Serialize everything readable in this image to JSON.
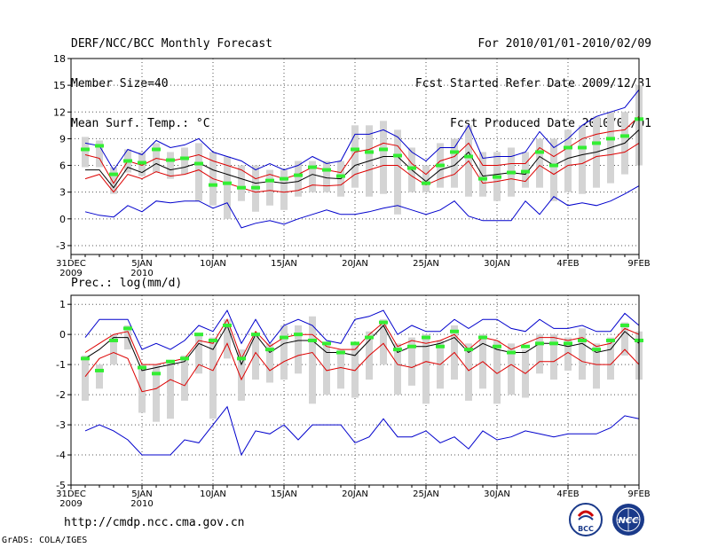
{
  "header": {
    "left": [
      "DERF/NCC/BCC Monthly Forecast",
      "Member Size=40",
      "Mean Surf. Temp.: °C"
    ],
    "right": [
      "For 2010/01/01-2010/02/09",
      "Fcst Started Refer Date 2009/12/31",
      "Fcst Produced Date 2010/01/01"
    ]
  },
  "footer": {
    "url": "http://cmdp.ncc.cma.gov.cn",
    "credit": "GrADS: COLA/IGES",
    "logo_left_text": "BCC",
    "logo_right_text": "NCC"
  },
  "colors": {
    "max": "#0000cc",
    "min": "#0000cc",
    "upper": "#dd0000",
    "lower": "#dd0000",
    "mean": "#000000",
    "box": "#d4d4d4",
    "obs": "#33ee33"
  },
  "chart_data": [
    {
      "type": "line",
      "title": "Mean Surf. Temp.: °C",
      "ylim": [
        -4,
        18
      ],
      "yticks": [
        -3,
        0,
        3,
        6,
        9,
        12,
        15,
        18
      ],
      "xlabels": [
        {
          "day": 0,
          "lines": [
            "31DEC",
            "2009"
          ]
        },
        {
          "day": 5,
          "lines": [
            "5JAN",
            "2010"
          ]
        },
        {
          "day": 10,
          "lines": [
            "10JAN"
          ]
        },
        {
          "day": 15,
          "lines": [
            "15JAN"
          ]
        },
        {
          "day": 20,
          "lines": [
            "20JAN"
          ]
        },
        {
          "day": 25,
          "lines": [
            "25JAN"
          ]
        },
        {
          "day": 30,
          "lines": [
            "30JAN"
          ]
        },
        {
          "day": 35,
          "lines": [
            "4FEB"
          ]
        },
        {
          "day": 40,
          "lines": [
            "9FEB"
          ]
        }
      ],
      "days": [
        1,
        2,
        3,
        4,
        5,
        6,
        7,
        8,
        9,
        10,
        11,
        12,
        13,
        14,
        15,
        16,
        17,
        18,
        19,
        20,
        21,
        22,
        23,
        24,
        25,
        26,
        27,
        28,
        29,
        30,
        31,
        32,
        33,
        34,
        35,
        36,
        37,
        38,
        39,
        40
      ],
      "series": [
        {
          "name": "max",
          "values": [
            8.5,
            8.2,
            5.5,
            7.8,
            7.2,
            8.8,
            8.0,
            8.3,
            9.0,
            7.5,
            7.0,
            6.5,
            5.5,
            6.2,
            5.5,
            6.0,
            7.0,
            6.2,
            6.5,
            9.5,
            9.5,
            10.0,
            9.2,
            7.5,
            6.5,
            8.0,
            8.0,
            10.5,
            6.8,
            7.0,
            7.0,
            7.5,
            9.8,
            8.0,
            9.0,
            10.5,
            11.5,
            12.0,
            12.5,
            14.5
          ]
        },
        {
          "name": "upper",
          "values": [
            7.2,
            6.8,
            4.0,
            6.5,
            6.0,
            6.8,
            6.5,
            6.8,
            7.2,
            6.5,
            6.0,
            5.5,
            4.5,
            5.0,
            4.5,
            5.0,
            5.8,
            5.5,
            5.2,
            7.5,
            7.8,
            8.5,
            8.2,
            6.2,
            5.0,
            6.5,
            7.0,
            8.5,
            6.0,
            6.0,
            6.2,
            6.2,
            8.0,
            7.0,
            8.0,
            9.0,
            9.5,
            9.8,
            10.0,
            11.5
          ]
        },
        {
          "name": "mean",
          "values": [
            5.5,
            5.5,
            3.5,
            5.8,
            5.2,
            6.2,
            5.5,
            5.8,
            6.3,
            5.5,
            5.0,
            4.5,
            4.0,
            4.2,
            4.0,
            4.2,
            5.0,
            4.6,
            4.5,
            6.0,
            6.5,
            7.0,
            7.0,
            5.5,
            4.2,
            5.5,
            6.0,
            7.5,
            4.8,
            5.0,
            5.2,
            5.0,
            7.0,
            6.0,
            6.8,
            7.2,
            7.5,
            8.0,
            8.5,
            10.0
          ]
        },
        {
          "name": "lower",
          "values": [
            4.5,
            5.0,
            3.0,
            5.0,
            4.5,
            5.3,
            4.8,
            5.0,
            5.5,
            4.5,
            4.0,
            3.5,
            3.0,
            3.2,
            3.0,
            3.2,
            3.8,
            3.7,
            3.8,
            5.0,
            5.5,
            6.0,
            6.0,
            4.8,
            3.8,
            4.5,
            5.0,
            6.5,
            4.0,
            4.2,
            4.5,
            4.2,
            6.0,
            5.0,
            6.0,
            6.2,
            7.0,
            7.2,
            7.5,
            8.5
          ]
        },
        {
          "name": "min",
          "values": [
            0.8,
            0.4,
            0.2,
            1.5,
            0.8,
            2.0,
            1.8,
            2.0,
            2.0,
            1.2,
            1.8,
            -1.0,
            -0.5,
            -0.2,
            -0.6,
            0.0,
            0.5,
            1.0,
            0.5,
            0.5,
            0.8,
            1.2,
            1.5,
            1.0,
            0.5,
            1.0,
            2.0,
            0.3,
            -0.2,
            -0.2,
            -0.2,
            2.0,
            0.5,
            2.5,
            1.5,
            1.8,
            1.5,
            2.0,
            2.8,
            3.7
          ]
        },
        {
          "name": "obs",
          "values": [
            7.8,
            8.2,
            5.0,
            6.5,
            6.3,
            7.8,
            6.6,
            6.8,
            6.2,
            3.8,
            4.0,
            3.5,
            3.5,
            4.3,
            4.5,
            4.9,
            5.8,
            5.5,
            4.8,
            7.8,
            7.5,
            7.8,
            7.1,
            5.7,
            4.0,
            6.0,
            7.5,
            7.0,
            4.5,
            4.7,
            5.2,
            5.3,
            7.5,
            6.0,
            8.0,
            8.0,
            8.5,
            9.0,
            9.3,
            11.2
          ]
        }
      ],
      "boxes": [
        [
          5.8,
          9.2
        ],
        [
          5.8,
          8.8
        ],
        [
          2.8,
          5.8
        ],
        [
          5.2,
          7.8
        ],
        [
          4.8,
          7.5
        ],
        [
          5.2,
          8.5
        ],
        [
          4.5,
          7.5
        ],
        [
          5.0,
          8.0
        ],
        [
          2.0,
          8.5
        ],
        [
          1.5,
          7.5
        ],
        [
          0.0,
          7.0
        ],
        [
          2.0,
          6.0
        ],
        [
          0.8,
          6.0
        ],
        [
          1.5,
          5.5
        ],
        [
          1.0,
          5.5
        ],
        [
          2.5,
          6.5
        ],
        [
          3.0,
          6.5
        ],
        [
          3.0,
          6.5
        ],
        [
          2.5,
          6.5
        ],
        [
          3.5,
          10.5
        ],
        [
          2.5,
          10.5
        ],
        [
          2.8,
          11.0
        ],
        [
          0.5,
          10.0
        ],
        [
          3.0,
          8.0
        ],
        [
          3.0,
          6.0
        ],
        [
          3.5,
          8.5
        ],
        [
          3.5,
          9.0
        ],
        [
          2.5,
          10.5
        ],
        [
          2.5,
          7.5
        ],
        [
          2.0,
          7.5
        ],
        [
          2.5,
          8.0
        ],
        [
          3.5,
          7.5
        ],
        [
          3.5,
          9.0
        ],
        [
          2.0,
          9.0
        ],
        [
          3.0,
          10.0
        ],
        [
          2.8,
          10.5
        ],
        [
          3.5,
          11.5
        ],
        [
          4.0,
          12.0
        ],
        [
          5.0,
          12.0
        ],
        [
          6.0,
          15.0
        ]
      ]
    },
    {
      "type": "line",
      "title": "Prec.: log(mm/d)",
      "ylim": [
        -5,
        1.3
      ],
      "yticks": [
        -5,
        -4,
        -3,
        -2,
        -1,
        0,
        1
      ],
      "xlabels": [
        {
          "day": 0,
          "lines": [
            "31DEC",
            "2009"
          ]
        },
        {
          "day": 5,
          "lines": [
            "5JAN",
            "2010"
          ]
        },
        {
          "day": 10,
          "lines": [
            "10JAN"
          ]
        },
        {
          "day": 15,
          "lines": [
            "15JAN"
          ]
        },
        {
          "day": 20,
          "lines": [
            "20JAN"
          ]
        },
        {
          "day": 25,
          "lines": [
            "25JAN"
          ]
        },
        {
          "day": 30,
          "lines": [
            "30JAN"
          ]
        },
        {
          "day": 35,
          "lines": [
            "4FEB"
          ]
        },
        {
          "day": 40,
          "lines": [
            "9FEB"
          ]
        }
      ],
      "days": [
        1,
        2,
        3,
        4,
        5,
        6,
        7,
        8,
        9,
        10,
        11,
        12,
        13,
        14,
        15,
        16,
        17,
        18,
        19,
        20,
        21,
        22,
        23,
        24,
        25,
        26,
        27,
        28,
        29,
        30,
        31,
        32,
        33,
        34,
        35,
        36,
        37,
        38,
        39,
        40
      ],
      "series": [
        {
          "name": "max",
          "values": [
            -0.1,
            0.5,
            0.5,
            0.5,
            -0.5,
            -0.3,
            -0.5,
            -0.2,
            0.3,
            0.1,
            0.8,
            -0.3,
            0.5,
            -0.3,
            0.3,
            0.5,
            0.3,
            -0.2,
            -0.3,
            0.5,
            0.6,
            0.8,
            0.0,
            0.3,
            0.1,
            0.1,
            0.5,
            0.2,
            0.5,
            0.5,
            0.2,
            0.1,
            0.5,
            0.2,
            0.2,
            0.3,
            0.1,
            0.1,
            0.7,
            0.3
          ]
        },
        {
          "name": "upper",
          "values": [
            -0.6,
            -0.3,
            0.0,
            0.1,
            -1.0,
            -1.0,
            -0.9,
            -0.8,
            -0.2,
            -0.3,
            0.5,
            -0.8,
            0.1,
            -0.4,
            -0.1,
            0.0,
            0.0,
            -0.4,
            -0.5,
            -0.5,
            0.0,
            0.4,
            -0.4,
            -0.2,
            -0.3,
            -0.2,
            0.0,
            -0.5,
            -0.1,
            -0.2,
            -0.5,
            -0.3,
            -0.1,
            -0.1,
            -0.2,
            -0.1,
            -0.4,
            -0.3,
            0.2,
            0.0
          ]
        },
        {
          "name": "mean",
          "values": [
            -0.8,
            -0.5,
            -0.1,
            -0.1,
            -1.2,
            -1.1,
            -1.0,
            -0.9,
            -0.3,
            -0.5,
            0.3,
            -1.0,
            0.0,
            -0.6,
            -0.3,
            -0.2,
            -0.2,
            -0.6,
            -0.6,
            -0.7,
            -0.2,
            0.3,
            -0.6,
            -0.4,
            -0.4,
            -0.3,
            -0.1,
            -0.6,
            -0.3,
            -0.5,
            -0.6,
            -0.6,
            -0.3,
            -0.3,
            -0.4,
            -0.3,
            -0.6,
            -0.5,
            0.1,
            -0.3
          ]
        },
        {
          "name": "lower",
          "values": [
            -1.4,
            -0.8,
            -0.6,
            -0.8,
            -1.9,
            -1.8,
            -1.5,
            -1.7,
            -1.0,
            -1.2,
            -0.3,
            -1.5,
            -0.6,
            -1.2,
            -0.9,
            -0.7,
            -0.6,
            -1.2,
            -1.1,
            -1.2,
            -0.7,
            -0.3,
            -1.0,
            -1.1,
            -0.9,
            -1.0,
            -0.6,
            -1.2,
            -0.9,
            -1.3,
            -1.0,
            -1.3,
            -0.9,
            -0.9,
            -0.6,
            -0.9,
            -1.0,
            -1.0,
            -0.5,
            -1.0
          ]
        },
        {
          "name": "min",
          "values": [
            -3.2,
            -3.0,
            -3.2,
            -3.5,
            -4.0,
            -4.0,
            -4.0,
            -3.5,
            -3.6,
            -3.0,
            -2.4,
            -4.0,
            -3.2,
            -3.3,
            -3.0,
            -3.5,
            -3.0,
            -3.0,
            -3.0,
            -3.6,
            -3.4,
            -2.8,
            -3.4,
            -3.4,
            -3.2,
            -3.6,
            -3.4,
            -3.8,
            -3.2,
            -3.5,
            -3.4,
            -3.2,
            -3.3,
            -3.4,
            -3.3,
            -3.3,
            -3.3,
            -3.1,
            -2.7,
            -2.8
          ]
        },
        {
          "name": "obs",
          "values": [
            -0.8,
            -1.2,
            -0.2,
            0.2,
            -1.1,
            -1.3,
            -0.9,
            -0.8,
            0.0,
            -0.2,
            0.3,
            -0.8,
            0.0,
            -0.5,
            -0.1,
            0.0,
            -0.2,
            -0.3,
            -0.6,
            -0.3,
            -0.1,
            0.4,
            -0.5,
            -0.4,
            -0.1,
            -0.4,
            0.1,
            -0.5,
            -0.1,
            -0.4,
            -0.6,
            -0.4,
            -0.3,
            -0.3,
            -0.3,
            -0.2,
            -0.5,
            -0.2,
            0.3,
            -0.2
          ]
        }
      ],
      "boxes": [
        [
          -2.2,
          -0.7
        ],
        [
          -1.8,
          -1.0
        ],
        [
          -1.0,
          0.0
        ],
        [
          -0.5,
          0.3
        ],
        [
          -2.6,
          -1.0
        ],
        [
          -2.9,
          -1.0
        ],
        [
          -2.8,
          -0.9
        ],
        [
          -2.2,
          -0.7
        ],
        [
          -1.3,
          0.0
        ],
        [
          -2.8,
          -0.1
        ],
        [
          -0.8,
          0.5
        ],
        [
          -2.2,
          -0.5
        ],
        [
          -1.5,
          0.0
        ],
        [
          -1.6,
          -0.3
        ],
        [
          -1.5,
          0.3
        ],
        [
          -1.3,
          0.3
        ],
        [
          -2.3,
          0.6
        ],
        [
          -2.0,
          -0.3
        ],
        [
          -1.8,
          -0.5
        ],
        [
          -2.1,
          -0.3
        ],
        [
          -1.5,
          0.1
        ],
        [
          -1.0,
          0.5
        ],
        [
          -2.0,
          -0.3
        ],
        [
          -1.7,
          -0.1
        ],
        [
          -2.3,
          0.0
        ],
        [
          -1.8,
          -0.2
        ],
        [
          -1.5,
          0.3
        ],
        [
          -2.2,
          -0.3
        ],
        [
          -1.8,
          0.0
        ],
        [
          -2.3,
          -0.2
        ],
        [
          -2.0,
          -0.3
        ],
        [
          -2.1,
          -0.5
        ],
        [
          -1.3,
          0.0
        ],
        [
          -1.5,
          0.0
        ],
        [
          -1.2,
          -0.1
        ],
        [
          -1.5,
          0.2
        ],
        [
          -1.8,
          -0.3
        ],
        [
          -1.5,
          -0.1
        ],
        [
          -0.7,
          0.4
        ],
        [
          -1.5,
          0.1
        ]
      ]
    }
  ]
}
